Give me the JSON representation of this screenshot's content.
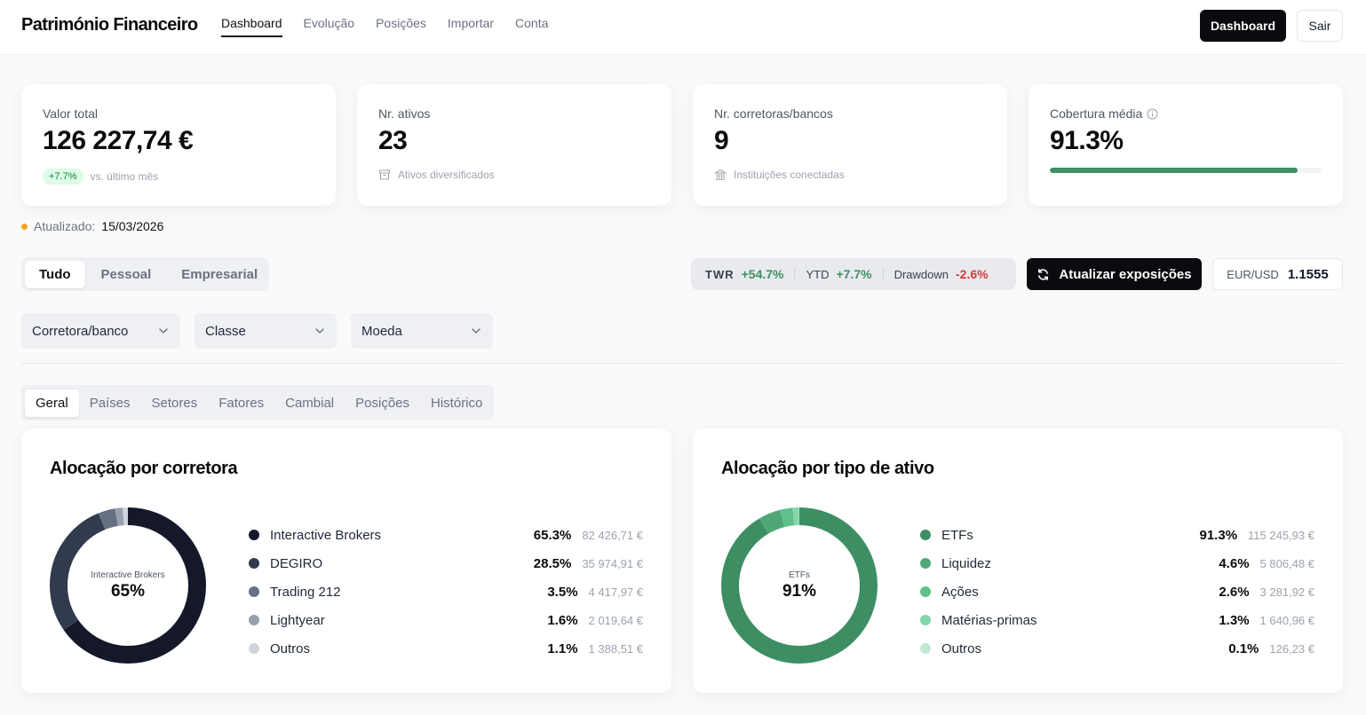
{
  "app": {
    "title": "Património Financeiro",
    "nav": [
      {
        "label": "Dashboard",
        "active": true
      },
      {
        "label": "Evolução"
      },
      {
        "label": "Posições"
      },
      {
        "label": "Importar"
      },
      {
        "label": "Conta"
      }
    ],
    "btn_dashboard": "Dashboard",
    "btn_logout": "Sair"
  },
  "kpis": {
    "total": {
      "label": "Valor total",
      "value": "126 227,74 €",
      "badge": "+7.7%",
      "sub": "vs. último mês"
    },
    "assets": {
      "label": "Nr. ativos",
      "value": "23",
      "sub": "Ativos diversificados"
    },
    "brokers": {
      "label": "Nr. corretoras/bancos",
      "value": "9",
      "sub": "Instituições conectadas"
    },
    "coverage": {
      "label": "Cobertura média",
      "value": "91.3%",
      "progress": 0.913
    }
  },
  "updated": {
    "label": "Atualizado:",
    "date": "15/03/2026"
  },
  "segments": [
    "Tudo",
    "Pessoal",
    "Empresarial"
  ],
  "metrics": {
    "twr_label": "TWR",
    "twr_value": "+54.7%",
    "ytd_label": "YTD",
    "ytd_value": "+7.7%",
    "dd_label": "Drawdown",
    "dd_value": "-2.6%"
  },
  "update_button": "Atualizar exposições",
  "fx": {
    "label": "EUR/USD",
    "value": "1.1555"
  },
  "filters": [
    {
      "label": "Corretora/banco"
    },
    {
      "label": "Classe"
    },
    {
      "label": "Moeda"
    }
  ],
  "tabs": [
    "Geral",
    "Países",
    "Setores",
    "Fatores",
    "Cambial",
    "Posições",
    "Histórico"
  ],
  "charts": {
    "broker": {
      "title": "Alocação por corretora",
      "center_label": "Interactive Brokers",
      "center_value": "65%",
      "items": [
        {
          "name": "Interactive Brokers",
          "pct": "65.3%",
          "amount": "82 426,71 €",
          "value": 65.3,
          "color": "#141829"
        },
        {
          "name": "DEGIRO",
          "pct": "28.5%",
          "amount": "35 974,91 €",
          "value": 28.5,
          "color": "#323b4d"
        },
        {
          "name": "Trading 212",
          "pct": "3.5%",
          "amount": "4 417,97 €",
          "value": 3.5,
          "color": "#667085"
        },
        {
          "name": "Lightyear",
          "pct": "1.6%",
          "amount": "2 019,64 €",
          "value": 1.6,
          "color": "#98a0ae"
        },
        {
          "name": "Outros",
          "pct": "1.1%",
          "amount": "1 388,51 €",
          "value": 1.1,
          "color": "#d0d5dd"
        }
      ]
    },
    "asset_type": {
      "title": "Alocação por tipo de ativo",
      "center_label": "ETFs",
      "center_value": "91%",
      "items": [
        {
          "name": "ETFs",
          "pct": "91.3%",
          "amount": "115 245,93 €",
          "value": 91.3,
          "color": "#3d8f63"
        },
        {
          "name": "Liquidez",
          "pct": "4.6%",
          "amount": "5 806,48 €",
          "value": 4.6,
          "color": "#4fa776"
        },
        {
          "name": "Ações",
          "pct": "2.6%",
          "amount": "3 281,92 €",
          "value": 2.6,
          "color": "#5fc08b"
        },
        {
          "name": "Matérias-primas",
          "pct": "1.3%",
          "amount": "1 640,96 €",
          "value": 1.3,
          "color": "#85d6aa"
        },
        {
          "name": "Outros",
          "pct": "0.1%",
          "amount": "126,23 €",
          "value": 0.1,
          "color": "#bfead1"
        }
      ]
    }
  }
}
